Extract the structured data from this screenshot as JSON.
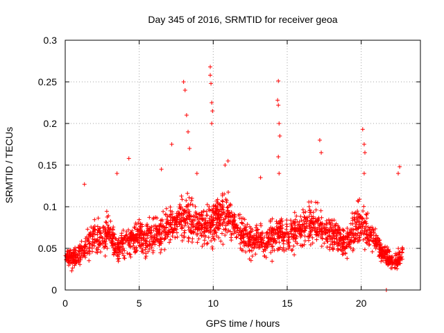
{
  "chart_data": {
    "type": "scatter",
    "title": "Day 345 of 2016, SRMTID for receiver geoa",
    "xlabel": "GPS time / hours",
    "ylabel": "SRMTID / TECUs",
    "xlim": [
      0,
      24
    ],
    "ylim": [
      0,
      0.3
    ],
    "xticks": [
      0,
      5,
      10,
      15,
      20
    ],
    "xtick_labels": [
      "0",
      "5",
      "10",
      "15",
      "20"
    ],
    "yticks": [
      0,
      0.05,
      0.1,
      0.15,
      0.2,
      0.25,
      0.3
    ],
    "ytick_labels": [
      "0",
      "0.05",
      "0.1",
      "0.15",
      "0.2",
      "0.25",
      "0.3"
    ],
    "grid": true,
    "legend": "none",
    "marker": "+",
    "series": [
      {
        "name": "SRMTID",
        "color": "#ff0000",
        "baseline_profile": {
          "x": [
            0,
            0.5,
            1,
            1.5,
            2,
            2.5,
            3,
            3.5,
            4,
            4.5,
            5,
            5.5,
            6,
            6.5,
            7,
            7.5,
            8,
            8.5,
            9,
            9.5,
            10,
            10.5,
            11,
            11.5,
            12,
            12.5,
            13,
            13.5,
            14,
            14.5,
            15,
            15.5,
            16,
            16.5,
            17,
            17.5,
            18,
            18.5,
            19,
            19.5,
            20,
            20.5,
            21,
            21.5,
            22,
            22.5,
            22.8
          ],
          "y": [
            0.04,
            0.038,
            0.045,
            0.055,
            0.062,
            0.066,
            0.07,
            0.05,
            0.055,
            0.06,
            0.065,
            0.062,
            0.066,
            0.072,
            0.078,
            0.085,
            0.09,
            0.085,
            0.08,
            0.075,
            0.085,
            0.09,
            0.088,
            0.075,
            0.068,
            0.058,
            0.062,
            0.058,
            0.065,
            0.07,
            0.064,
            0.07,
            0.075,
            0.08,
            0.078,
            0.072,
            0.068,
            0.06,
            0.058,
            0.07,
            0.085,
            0.07,
            0.055,
            0.045,
            0.035,
            0.035,
            0.045
          ]
        },
        "spikes": [
          {
            "x": 8.0,
            "y": 0.25
          },
          {
            "x": 8.1,
            "y": 0.24
          },
          {
            "x": 8.2,
            "y": 0.21
          },
          {
            "x": 8.3,
            "y": 0.19
          },
          {
            "x": 8.4,
            "y": 0.17
          },
          {
            "x": 8.9,
            "y": 0.14
          },
          {
            "x": 9.8,
            "y": 0.268
          },
          {
            "x": 9.8,
            "y": 0.258
          },
          {
            "x": 9.85,
            "y": 0.248
          },
          {
            "x": 9.9,
            "y": 0.225
          },
          {
            "x": 9.95,
            "y": 0.215
          },
          {
            "x": 9.9,
            "y": 0.2
          },
          {
            "x": 10.8,
            "y": 0.15
          },
          {
            "x": 11.0,
            "y": 0.155
          },
          {
            "x": 13.2,
            "y": 0.135
          },
          {
            "x": 14.4,
            "y": 0.251
          },
          {
            "x": 14.35,
            "y": 0.228
          },
          {
            "x": 14.4,
            "y": 0.222
          },
          {
            "x": 14.45,
            "y": 0.2
          },
          {
            "x": 14.5,
            "y": 0.185
          },
          {
            "x": 14.4,
            "y": 0.16
          },
          {
            "x": 14.45,
            "y": 0.14
          },
          {
            "x": 17.2,
            "y": 0.18
          },
          {
            "x": 17.3,
            "y": 0.165
          },
          {
            "x": 20.1,
            "y": 0.193
          },
          {
            "x": 20.2,
            "y": 0.175
          },
          {
            "x": 20.25,
            "y": 0.165
          },
          {
            "x": 20.2,
            "y": 0.14
          },
          {
            "x": 22.6,
            "y": 0.148
          },
          {
            "x": 22.5,
            "y": 0.14
          },
          {
            "x": 6.5,
            "y": 0.145
          },
          {
            "x": 7.2,
            "y": 0.175
          },
          {
            "x": 4.3,
            "y": 0.158
          },
          {
            "x": 3.5,
            "y": 0.14
          },
          {
            "x": 1.3,
            "y": 0.127
          },
          {
            "x": 21.7,
            "y": 0.0
          }
        ]
      }
    ]
  }
}
